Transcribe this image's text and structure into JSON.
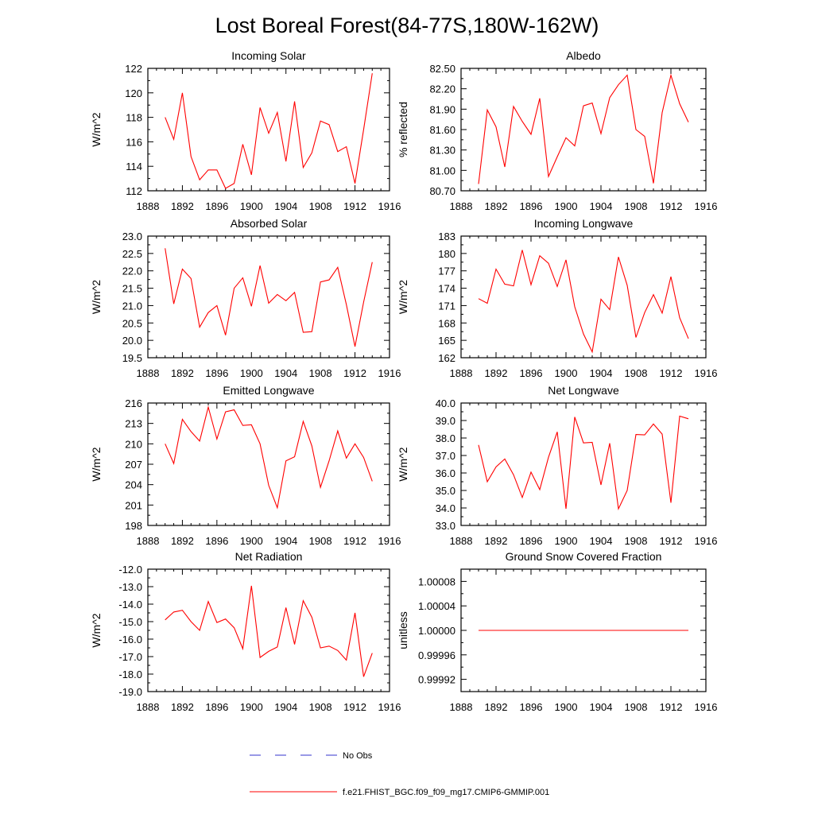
{
  "figure_title": "Lost Boreal Forest(84-77S,180W-162W)",
  "colors": {
    "model": "#ff0000",
    "obs": "#3333cc",
    "axis": "#000000"
  },
  "legend": {
    "obs_label": "No Obs",
    "model_label": "f.e21.FHIST_BGC.f09_f09_mg17.CMIP6-GMMIP.001"
  },
  "chart_data": [
    {
      "type": "line",
      "title": "Incoming Solar",
      "xlabel": "",
      "ylabel": "W/m^2",
      "xlim": [
        1888,
        1916
      ],
      "ylim": [
        112,
        122
      ],
      "xticks": [
        1888,
        1892,
        1896,
        1900,
        1904,
        1908,
        1912,
        1916
      ],
      "yticks": [
        112,
        114,
        116,
        118,
        120,
        122
      ],
      "ytick_labels": [
        "112",
        "114",
        "116",
        "118",
        "120",
        "122"
      ],
      "x": [
        1890,
        1891,
        1892,
        1893,
        1894,
        1895,
        1896,
        1897,
        1898,
        1899,
        1900,
        1901,
        1902,
        1903,
        1904,
        1905,
        1906,
        1907,
        1908,
        1909,
        1910,
        1911,
        1912,
        1913,
        1914
      ],
      "series": [
        {
          "name": "f.e21.FHIST_BGC.f09_f09_mg17.CMIP6-GMMIP.001",
          "values": [
            118.0,
            116.2,
            120.0,
            114.8,
            112.9,
            113.7,
            113.7,
            112.2,
            112.6,
            115.8,
            113.3,
            118.8,
            116.7,
            118.4,
            114.4,
            119.3,
            113.9,
            115.1,
            117.7,
            117.4,
            115.2,
            115.6,
            112.6,
            117.0,
            121.6
          ]
        }
      ]
    },
    {
      "type": "line",
      "title": "Albedo",
      "xlabel": "",
      "ylabel": "% reflected",
      "xlim": [
        1888,
        1916
      ],
      "ylim": [
        80.7,
        82.5
      ],
      "xticks": [
        1888,
        1892,
        1896,
        1900,
        1904,
        1908,
        1912,
        1916
      ],
      "yticks": [
        80.7,
        81.0,
        81.3,
        81.6,
        81.9,
        82.2,
        82.5
      ],
      "ytick_labels": [
        "80.70",
        "81.00",
        "81.30",
        "81.60",
        "81.90",
        "82.20",
        "82.50"
      ],
      "x": [
        1890,
        1891,
        1892,
        1893,
        1894,
        1895,
        1896,
        1897,
        1898,
        1899,
        1900,
        1901,
        1902,
        1903,
        1904,
        1905,
        1906,
        1907,
        1908,
        1909,
        1910,
        1911,
        1912,
        1913,
        1914
      ],
      "series": [
        {
          "name": "f.e21.FHIST_BGC.f09_f09_mg17.CMIP6-GMMIP.001",
          "values": [
            80.8,
            81.89,
            81.64,
            81.05,
            81.94,
            81.72,
            81.53,
            82.06,
            80.91,
            81.2,
            81.48,
            81.36,
            81.95,
            81.99,
            81.54,
            82.07,
            82.26,
            82.4,
            81.6,
            81.5,
            80.81,
            81.85,
            82.4,
            81.98,
            81.71
          ]
        }
      ]
    },
    {
      "type": "line",
      "title": "Absorbed Solar",
      "xlabel": "",
      "ylabel": "W/m^2",
      "xlim": [
        1888,
        1916
      ],
      "ylim": [
        19.5,
        23.0
      ],
      "xticks": [
        1888,
        1892,
        1896,
        1900,
        1904,
        1908,
        1912,
        1916
      ],
      "yticks": [
        19.5,
        20.0,
        20.5,
        21.0,
        21.5,
        22.0,
        22.5,
        23.0
      ],
      "ytick_labels": [
        "19.5",
        "20.0",
        "20.5",
        "21.0",
        "21.5",
        "22.0",
        "22.5",
        "23.0"
      ],
      "x": [
        1890,
        1891,
        1892,
        1893,
        1894,
        1895,
        1896,
        1897,
        1898,
        1899,
        1900,
        1901,
        1902,
        1903,
        1904,
        1905,
        1906,
        1907,
        1908,
        1909,
        1910,
        1911,
        1912,
        1913,
        1914
      ],
      "series": [
        {
          "name": "f.e21.FHIST_BGC.f09_f09_mg17.CMIP6-GMMIP.001",
          "values": [
            22.65,
            21.05,
            22.05,
            21.78,
            20.38,
            20.8,
            21.0,
            20.15,
            21.5,
            21.8,
            20.98,
            22.15,
            21.07,
            21.32,
            21.14,
            21.38,
            20.23,
            20.25,
            21.68,
            21.74,
            22.1,
            21.03,
            19.82,
            21.1,
            22.25
          ]
        }
      ]
    },
    {
      "type": "line",
      "title": "Incoming Longwave",
      "xlabel": "",
      "ylabel": "W/m^2",
      "xlim": [
        1888,
        1916
      ],
      "ylim": [
        162,
        183
      ],
      "xticks": [
        1888,
        1892,
        1896,
        1900,
        1904,
        1908,
        1912,
        1916
      ],
      "yticks": [
        162,
        165,
        168,
        171,
        174,
        177,
        180,
        183
      ],
      "ytick_labels": [
        "162",
        "165",
        "168",
        "171",
        "174",
        "177",
        "180",
        "183"
      ],
      "x": [
        1890,
        1891,
        1892,
        1893,
        1894,
        1895,
        1896,
        1897,
        1898,
        1899,
        1900,
        1901,
        1902,
        1903,
        1904,
        1905,
        1906,
        1907,
        1908,
        1909,
        1910,
        1911,
        1912,
        1913,
        1914
      ],
      "series": [
        {
          "name": "f.e21.FHIST_BGC.f09_f09_mg17.CMIP6-GMMIP.001",
          "values": [
            172.2,
            171.4,
            177.3,
            174.7,
            174.4,
            180.6,
            174.6,
            179.6,
            178.3,
            174.3,
            178.9,
            170.8,
            166.1,
            163.0,
            172.1,
            170.3,
            179.4,
            174.5,
            165.5,
            169.8,
            172.9,
            169.7,
            176.0,
            168.9,
            165.3
          ]
        }
      ]
    },
    {
      "type": "line",
      "title": "Emitted Longwave",
      "xlabel": "",
      "ylabel": "W/m^2",
      "xlim": [
        1888,
        1916
      ],
      "ylim": [
        198,
        216
      ],
      "xticks": [
        1888,
        1892,
        1896,
        1900,
        1904,
        1908,
        1912,
        1916
      ],
      "yticks": [
        198,
        201,
        204,
        207,
        210,
        213,
        216
      ],
      "ytick_labels": [
        "198",
        "201",
        "204",
        "207",
        "210",
        "213",
        "216"
      ],
      "x": [
        1890,
        1891,
        1892,
        1893,
        1894,
        1895,
        1896,
        1897,
        1898,
        1899,
        1900,
        1901,
        1902,
        1903,
        1904,
        1905,
        1906,
        1907,
        1908,
        1909,
        1910,
        1911,
        1912,
        1913,
        1914
      ],
      "series": [
        {
          "name": "f.e21.FHIST_BGC.f09_f09_mg17.CMIP6-GMMIP.001",
          "values": [
            210.0,
            207.1,
            213.6,
            211.8,
            210.4,
            215.4,
            210.7,
            214.7,
            215.0,
            212.7,
            212.8,
            210.0,
            203.9,
            200.6,
            207.5,
            208.1,
            213.3,
            209.7,
            203.6,
            207.5,
            211.9,
            207.9,
            210.0,
            208.0,
            204.5
          ]
        }
      ]
    },
    {
      "type": "line",
      "title": "Net Longwave",
      "xlabel": "",
      "ylabel": "W/m^2",
      "xlim": [
        1888,
        1916
      ],
      "ylim": [
        33.0,
        40.0
      ],
      "xticks": [
        1888,
        1892,
        1896,
        1900,
        1904,
        1908,
        1912,
        1916
      ],
      "yticks": [
        33.0,
        34.0,
        35.0,
        36.0,
        37.0,
        38.0,
        39.0,
        40.0
      ],
      "ytick_labels": [
        "33.0",
        "34.0",
        "35.0",
        "36.0",
        "37.0",
        "38.0",
        "39.0",
        "40.0"
      ],
      "x": [
        1890,
        1891,
        1892,
        1893,
        1894,
        1895,
        1896,
        1897,
        1898,
        1899,
        1900,
        1901,
        1902,
        1903,
        1904,
        1905,
        1906,
        1907,
        1908,
        1909,
        1910,
        1911,
        1912,
        1913,
        1914
      ],
      "series": [
        {
          "name": "f.e21.FHIST_BGC.f09_f09_mg17.CMIP6-GMMIP.001",
          "values": [
            37.6,
            35.5,
            36.35,
            36.8,
            35.9,
            34.6,
            36.05,
            35.05,
            36.9,
            38.35,
            33.95,
            39.2,
            37.72,
            37.75,
            35.32,
            37.7,
            33.95,
            35.0,
            38.2,
            38.18,
            38.8,
            38.22,
            34.3,
            39.25,
            39.1
          ]
        }
      ]
    },
    {
      "type": "line",
      "title": "Net Radiation",
      "xlabel": "",
      "ylabel": "W/m^2",
      "xlim": [
        1888,
        1916
      ],
      "ylim": [
        -19.0,
        -12.0
      ],
      "xticks": [
        1888,
        1892,
        1896,
        1900,
        1904,
        1908,
        1912,
        1916
      ],
      "yticks": [
        -19.0,
        -18.0,
        -17.0,
        -16.0,
        -15.0,
        -14.0,
        -13.0,
        -12.0
      ],
      "ytick_labels": [
        "-19.0",
        "-18.0",
        "-17.0",
        "-16.0",
        "-15.0",
        "-14.0",
        "-13.0",
        "-12.0"
      ],
      "x": [
        1890,
        1891,
        1892,
        1893,
        1894,
        1895,
        1896,
        1897,
        1898,
        1899,
        1900,
        1901,
        1902,
        1903,
        1904,
        1905,
        1906,
        1907,
        1908,
        1909,
        1910,
        1911,
        1912,
        1913,
        1914
      ],
      "series": [
        {
          "name": "f.e21.FHIST_BGC.f09_f09_mg17.CMIP6-GMMIP.001",
          "values": [
            -14.9,
            -14.45,
            -14.35,
            -15.0,
            -15.5,
            -13.85,
            -15.05,
            -14.85,
            -15.35,
            -16.55,
            -12.95,
            -17.05,
            -16.7,
            -16.45,
            -14.2,
            -16.3,
            -13.8,
            -14.75,
            -16.5,
            -16.4,
            -16.65,
            -17.2,
            -14.5,
            -18.15,
            -16.8
          ]
        }
      ]
    },
    {
      "type": "line",
      "title": "Ground Snow Covered Fraction",
      "xlabel": "",
      "ylabel": "unitless",
      "xlim": [
        1888,
        1916
      ],
      "ylim": [
        0.9999,
        1.0001
      ],
      "xticks": [
        1888,
        1892,
        1896,
        1900,
        1904,
        1908,
        1912,
        1916
      ],
      "yticks": [
        0.99992,
        0.99996,
        1.0,
        1.00004,
        1.00008
      ],
      "ytick_labels": [
        "0.99992",
        "0.99996",
        "1.00000",
        "1.00004",
        "1.00008"
      ],
      "x": [
        1890,
        1891,
        1892,
        1893,
        1894,
        1895,
        1896,
        1897,
        1898,
        1899,
        1900,
        1901,
        1902,
        1903,
        1904,
        1905,
        1906,
        1907,
        1908,
        1909,
        1910,
        1911,
        1912,
        1913,
        1914
      ],
      "series": [
        {
          "name": "f.e21.FHIST_BGC.f09_f09_mg17.CMIP6-GMMIP.001",
          "values": [
            1,
            1,
            1,
            1,
            1,
            1,
            1,
            1,
            1,
            1,
            1,
            1,
            1,
            1,
            1,
            1,
            1,
            1,
            1,
            1,
            1,
            1,
            1,
            1,
            1
          ]
        }
      ]
    }
  ]
}
